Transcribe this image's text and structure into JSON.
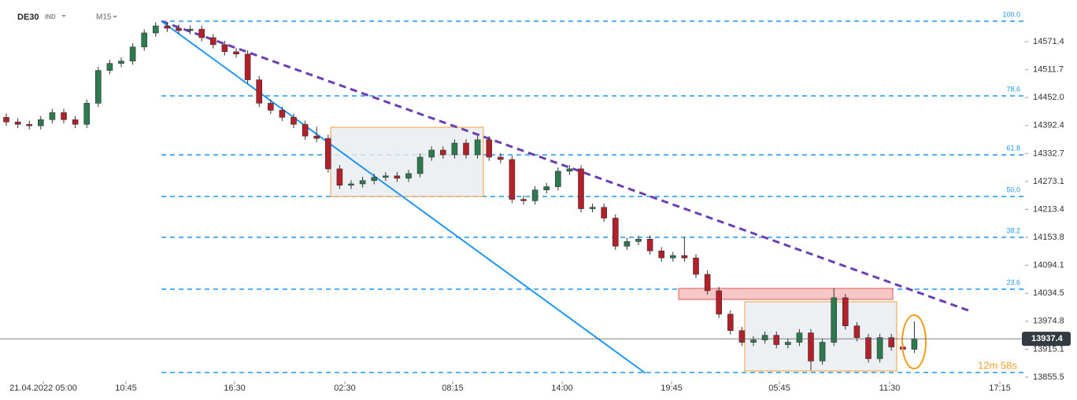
{
  "chart_data": {
    "type": "candlestick",
    "symbol": "DE30",
    "symbol_type": "IND",
    "timeframe": "M15",
    "timer": "12m 58s",
    "up_color": "#2d7a4f",
    "down_color": "#b3202a",
    "xtick_labels": [
      "21.04.2022 05:00",
      "10:45",
      "16:30",
      "02:30",
      "08:15",
      "14:00",
      "19:45",
      "05:45",
      "11:30",
      "17:15"
    ],
    "ylim": [
      13847.1,
      14660.3
    ],
    "yticks": [
      14571.4,
      14511.7,
      {
        "value": 14452,
        "label": "14452.0"
      },
      14392.4,
      14332.7,
      14273.1,
      14213.4,
      14153.8,
      14094.1,
      14034.5,
      13974.8,
      13915.1,
      13855.5
    ],
    "fib_levels": {
      "labels": [
        "100.0",
        "78.6",
        "61.8",
        "50.0",
        "38.2",
        "23.6",
        null
      ],
      "values": [
        14615.0,
        14455.8,
        14330.0,
        14241.1,
        14154.0,
        14043.3,
        13865.6
      ],
      "color": "#2196f3"
    },
    "open": [
      14410,
      14400,
      14395,
      14392,
      14405,
      14420,
      14405,
      14395,
      14440,
      14510,
      14525,
      14530,
      14560,
      14590,
      14605,
      14600,
      14595,
      14598,
      14580,
      14565,
      14550,
      14545,
      14490,
      14440,
      14425,
      14410,
      14395,
      14370,
      14365,
      14300,
      14265,
      14268,
      14275,
      14282,
      14285,
      14280,
      14290,
      14325,
      14340,
      14330,
      14355,
      14330,
      14362,
      14325,
      14320,
      14235,
      14232,
      14255,
      14262,
      14295,
      14300,
      14215,
      14218,
      14195,
      14135,
      14145,
      14150,
      14125,
      14110,
      14115,
      14110,
      14075,
      14040,
      13990,
      13955,
      13930,
      13935,
      13945,
      13925,
      13930,
      13950,
      13890,
      13930,
      14025,
      13965,
      13940,
      13895,
      13940,
      13920,
      13915
    ],
    "high": [
      14418,
      14408,
      14403,
      14413,
      14428,
      14428,
      14413,
      14448,
      14518,
      14533,
      14538,
      14568,
      14598,
      14613,
      14613,
      14608,
      14606,
      14606,
      14588,
      14573,
      14558,
      14553,
      14498,
      14448,
      14433,
      14418,
      14403,
      14390,
      14373,
      14308,
      14276,
      14283,
      14290,
      14293,
      14293,
      14298,
      14333,
      14348,
      14348,
      14363,
      14363,
      14370,
      14370,
      14333,
      14328,
      14243,
      14263,
      14270,
      14303,
      14308,
      14308,
      14226,
      14226,
      14203,
      14153,
      14158,
      14158,
      14133,
      14123,
      14155,
      14118,
      14083,
      14048,
      13998,
      13963,
      13943,
      13953,
      13953,
      13938,
      13958,
      13958,
      13938,
      14045,
      14033,
      13973,
      13948,
      13948,
      13948,
      13928,
      13975
    ],
    "low": [
      14392,
      14387,
      14384,
      14384,
      14397,
      14397,
      14387,
      14387,
      14432,
      14502,
      14517,
      14522,
      14552,
      14582,
      14592,
      14587,
      14587,
      14572,
      14557,
      14542,
      14537,
      14482,
      14432,
      14417,
      14402,
      14387,
      14362,
      14357,
      14292,
      14257,
      14257,
      14260,
      14267,
      14274,
      14272,
      14272,
      14282,
      14317,
      14322,
      14322,
      14322,
      14322,
      14317,
      14312,
      14227,
      14224,
      14224,
      14247,
      14254,
      14287,
      14207,
      14207,
      14187,
      14127,
      14127,
      14137,
      14117,
      14102,
      14102,
      14102,
      14067,
      14032,
      13982,
      13947,
      13922,
      13922,
      13927,
      13917,
      13917,
      13922,
      13870,
      13882,
      13922,
      13957,
      13932,
      13887,
      13887,
      13912,
      13907,
      13907
    ],
    "close": [
      14400,
      14395,
      14392,
      14405,
      14420,
      14405,
      14395,
      14440,
      14510,
      14525,
      14530,
      14560,
      14590,
      14605,
      14600,
      14595,
      14598,
      14580,
      14565,
      14550,
      14545,
      14490,
      14440,
      14425,
      14410,
      14395,
      14370,
      14365,
      14300,
      14265,
      14268,
      14275,
      14282,
      14285,
      14280,
      14290,
      14325,
      14340,
      14330,
      14355,
      14330,
      14362,
      14325,
      14320,
      14235,
      14232,
      14255,
      14262,
      14295,
      14300,
      14215,
      14218,
      14195,
      14135,
      14145,
      14150,
      14125,
      14110,
      14115,
      14110,
      14075,
      14040,
      13990,
      13955,
      13930,
      13935,
      13945,
      13925,
      13930,
      13950,
      13890,
      13930,
      14025,
      13965,
      13940,
      13895,
      13940,
      13920,
      13915,
      13937.4
    ]
  }
}
